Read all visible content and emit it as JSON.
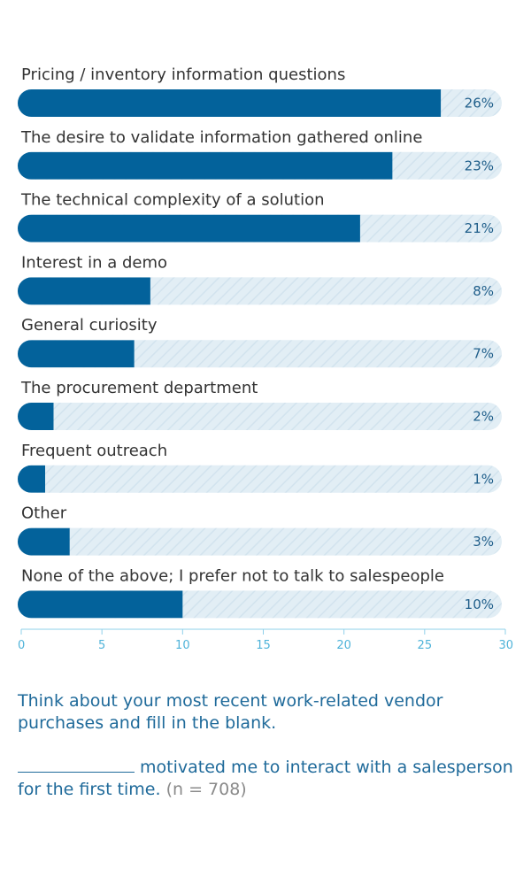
{
  "chart_data": {
    "type": "bar",
    "orientation": "horizontal",
    "categories": [
      "Pricing / inventory information questions",
      "The desire to validate information gathered online",
      "The technical complexity of a solution",
      "Interest in a demo",
      "General curiosity",
      "The procurement department",
      "Frequent outreach",
      "Other",
      "None of the above; I prefer not to talk to salespeople"
    ],
    "values": [
      26,
      23,
      21,
      8,
      7,
      2,
      1,
      3,
      10
    ],
    "value_labels": [
      "26%",
      "23%",
      "21%",
      "8%",
      "7%",
      "2%",
      "1%",
      "3%",
      "10%"
    ],
    "xlim": [
      0,
      30
    ],
    "xticks": [
      0,
      5,
      10,
      15,
      20,
      25,
      30
    ],
    "xtick_labels": [
      "0",
      "5",
      "10",
      "15",
      "20",
      "25",
      "30"
    ],
    "grid": false,
    "colors": {
      "bar": "#03629b",
      "track": "#e2eef5",
      "track_stripe": "#d3e4ef",
      "axis": "#8fd0ea"
    }
  },
  "question": {
    "line1": "Think about your most recent work-related vendor purchases and fill in the blank.",
    "line2": "motivated me to interact with a salesperson for the first time.",
    "n_note": "(n = 708)"
  }
}
